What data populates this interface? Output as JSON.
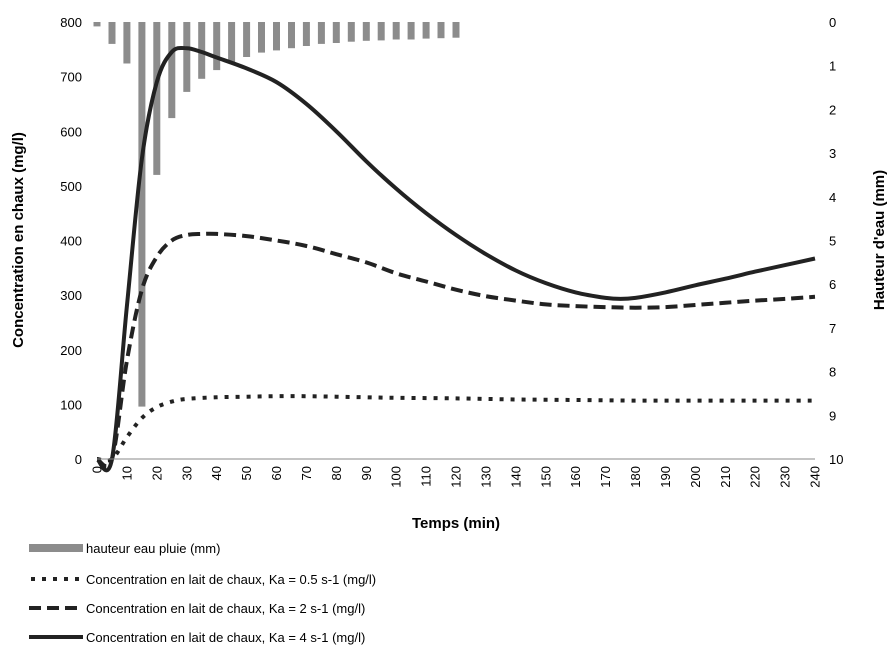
{
  "chart_data": {
    "type": "bar+line",
    "title": "",
    "xlabel": "Temps (min)",
    "ylabel": "Concentration en chaux  (mg/l)",
    "y2label": "Hauteur d'eau (mm)",
    "xlim": [
      0,
      240
    ],
    "ylim": [
      0,
      800
    ],
    "y2lim": [
      0,
      10
    ],
    "y2_inverted": true,
    "x_ticks": [
      0,
      10,
      20,
      30,
      40,
      50,
      60,
      70,
      80,
      90,
      100,
      110,
      120,
      130,
      140,
      150,
      160,
      170,
      180,
      190,
      200,
      210,
      220,
      230,
      240
    ],
    "y_ticks": [
      0,
      100,
      200,
      300,
      400,
      500,
      600,
      700,
      800
    ],
    "y2_ticks": [
      0,
      1,
      2,
      3,
      4,
      5,
      6,
      7,
      8,
      9,
      10
    ],
    "grid": false,
    "legend_position": "bottom-left",
    "legend": [
      "hauteur eau pluie (mm)",
      "Concentration en lait de chaux, Ka = 0.5 s-1 (mg/l)",
      "Concentration en lait de chaux, Ka = 2 s-1 (mg/l)",
      "Concentration en lait de chaux, Ka = 4 s-1 (mg/l)"
    ],
    "rain_series": {
      "name": "hauteur eau pluie (mm)",
      "color": "#8c8c8c",
      "x": [
        0,
        5,
        10,
        15,
        20,
        25,
        30,
        35,
        40,
        45,
        50,
        55,
        60,
        65,
        70,
        75,
        80,
        85,
        90,
        95,
        100,
        105,
        110,
        115,
        120
      ],
      "values": [
        0.1,
        0.5,
        0.95,
        8.8,
        3.5,
        2.2,
        1.6,
        1.3,
        1.1,
        0.95,
        0.8,
        0.7,
        0.65,
        0.6,
        0.55,
        0.5,
        0.48,
        0.45,
        0.43,
        0.42,
        0.4,
        0.4,
        0.38,
        0.37,
        0.36
      ]
    },
    "series": [
      {
        "name": "Concentration en lait de chaux, Ka = 0.5 s-1 (mg/l)",
        "style": "dotted",
        "color": "#222222",
        "x": [
          0,
          5,
          10,
          15,
          20,
          25,
          30,
          40,
          50,
          60,
          70,
          80,
          90,
          100,
          120,
          140,
          160,
          180,
          200,
          220,
          240
        ],
        "values": [
          0,
          0,
          40,
          75,
          95,
          105,
          110,
          113,
          114,
          115,
          115,
          114,
          113,
          112,
          111,
          109,
          108,
          107,
          107,
          107,
          107
        ]
      },
      {
        "name": "Concentration en lait de chaux, Ka = 2 s-1 (mg/l)",
        "style": "dashed",
        "color": "#222222",
        "x": [
          0,
          5,
          10,
          15,
          20,
          25,
          30,
          35,
          40,
          50,
          60,
          70,
          80,
          90,
          100,
          110,
          120,
          130,
          140,
          150,
          160,
          170,
          180,
          190,
          200,
          210,
          220,
          230,
          240
        ],
        "values": [
          0,
          0,
          180,
          310,
          370,
          400,
          410,
          412,
          412,
          408,
          400,
          390,
          375,
          360,
          340,
          325,
          310,
          298,
          290,
          283,
          280,
          278,
          277,
          278,
          282,
          286,
          290,
          293,
          297
        ]
      },
      {
        "name": "Concentration en lait de chaux, Ka = 4 s-1 (mg/l)",
        "style": "solid",
        "color": "#222222",
        "x": [
          0,
          5,
          10,
          15,
          20,
          25,
          30,
          35,
          40,
          50,
          60,
          70,
          80,
          90,
          100,
          110,
          120,
          130,
          140,
          150,
          160,
          170,
          175,
          180,
          190,
          200,
          210,
          220,
          230,
          240
        ],
        "values": [
          0,
          0,
          280,
          550,
          690,
          745,
          752,
          745,
          735,
          715,
          690,
          650,
          600,
          545,
          495,
          450,
          410,
          375,
          345,
          322,
          305,
          295,
          293,
          295,
          305,
          318,
          330,
          343,
          355,
          367
        ]
      }
    ]
  }
}
